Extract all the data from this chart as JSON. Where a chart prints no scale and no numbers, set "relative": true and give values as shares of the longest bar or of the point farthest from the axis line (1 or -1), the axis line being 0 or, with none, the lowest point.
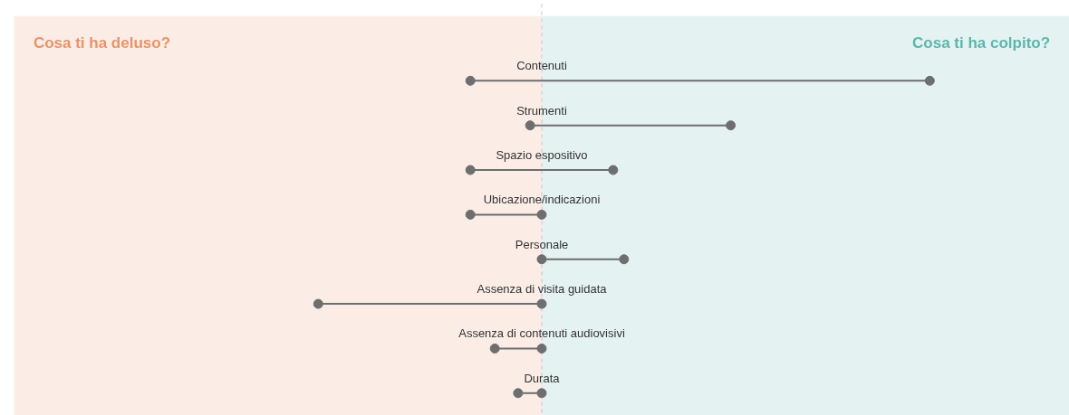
{
  "chart_data": {
    "type": "lollipop",
    "orientation": "horizontal",
    "relative": true,
    "marker": "circle",
    "grid": false,
    "categories": [
      "Contenuti",
      "Strumenti",
      "Spazio espositivo",
      "Ubicazione/indicazioni",
      "Personale",
      "Assenza di visita guidata",
      "Assenza di contenuti audiovisivi",
      "Durata"
    ],
    "series": [
      {
        "color": "#6e6e6e",
        "values": [
          -0.184,
          -0.03,
          -0.184,
          -0.184,
          0,
          -0.576,
          -0.121,
          -0.061
        ]
      },
      {
        "color": "#6e6e6e",
        "values": [
          1.0,
          0.487,
          0.184,
          0,
          0.212,
          0,
          0,
          0
        ]
      }
    ],
    "bands": [
      {
        "axis": "x",
        "from": -1.36,
        "to": 0,
        "label": "Cosa ti ha deluso?",
        "color": "#e8936a"
      },
      {
        "axis": "x",
        "from": 0,
        "to": 1.36,
        "label": "Cosa ti ha colpito?",
        "color": "#5db5ad"
      }
    ],
    "ref_lines": [
      {
        "axis": "x",
        "value": 0,
        "label": null,
        "color": "#cccccc",
        "line_style": "dashed"
      }
    ]
  }
}
